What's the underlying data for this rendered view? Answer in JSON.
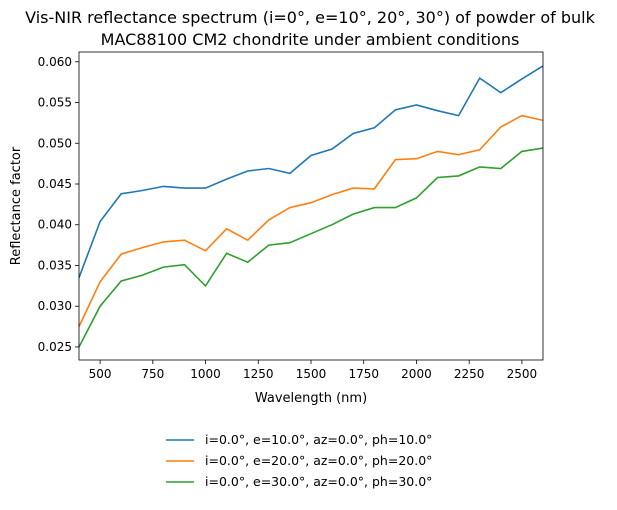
{
  "chart_data": {
    "type": "line",
    "title_lines": [
      "Vis-NIR reflectance spectrum (i=0°, e=10°, 20°, 30°) of powder of bulk",
      "MAC88100 CM2 chondrite under ambient conditions"
    ],
    "xlabel": "Wavelength (nm)",
    "ylabel": "Reflectance factor",
    "xlim": [
      400,
      2600
    ],
    "ylim": [
      0.0234,
      0.0612
    ],
    "xticks": [
      500,
      750,
      1000,
      1250,
      1500,
      1750,
      2000,
      2250,
      2500
    ],
    "yticks": [
      0.025,
      0.03,
      0.035,
      0.04,
      0.045,
      0.05,
      0.055,
      0.06
    ],
    "ytick_labels": [
      "0.025",
      "0.030",
      "0.035",
      "0.040",
      "0.045",
      "0.050",
      "0.055",
      "0.060"
    ],
    "grid": false,
    "legend_position": "below",
    "x": [
      400,
      500,
      600,
      700,
      800,
      900,
      1000,
      1100,
      1200,
      1300,
      1400,
      1500,
      1600,
      1700,
      1800,
      1900,
      2000,
      2100,
      2200,
      2300,
      2400,
      2500,
      2600
    ],
    "series": [
      {
        "name": "i=0.0°, e=10.0°, az=0.0°, ph=10.0°",
        "color": "#1f77b4",
        "values": [
          0.0335,
          0.0404,
          0.0438,
          0.0442,
          0.0447,
          0.0445,
          0.0445,
          0.0456,
          0.0466,
          0.0469,
          0.0463,
          0.0485,
          0.0493,
          0.0512,
          0.0519,
          0.0541,
          0.0547,
          0.054,
          0.0534,
          0.058,
          0.0562,
          0.0579,
          0.0595
        ]
      },
      {
        "name": "i=0.0°, e=20.0°, az=0.0°, ph=20.0°",
        "color": "#ff7f0e",
        "values": [
          0.0275,
          0.033,
          0.0364,
          0.0372,
          0.0379,
          0.0381,
          0.0368,
          0.0395,
          0.0381,
          0.0406,
          0.0421,
          0.0427,
          0.0437,
          0.0445,
          0.0444,
          0.048,
          0.0481,
          0.049,
          0.0486,
          0.0492,
          0.052,
          0.0534,
          0.0528
        ]
      },
      {
        "name": "i=0.0°, e=30.0°, az=0.0°, ph=30.0°",
        "color": "#2ca02c",
        "values": [
          0.025,
          0.03,
          0.0331,
          0.0338,
          0.0348,
          0.0351,
          0.0325,
          0.0365,
          0.0354,
          0.0375,
          0.0378,
          0.0389,
          0.04,
          0.0413,
          0.0421,
          0.0421,
          0.0433,
          0.0458,
          0.046,
          0.0471,
          0.0469,
          0.049,
          0.0494
        ]
      }
    ]
  }
}
